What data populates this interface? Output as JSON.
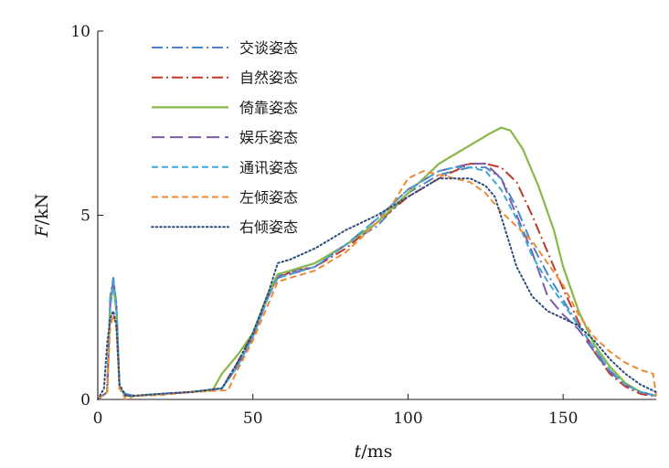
{
  "chart_data": {
    "type": "line",
    "xlabel": "t/ms",
    "ylabel": "F/kN",
    "xlim": [
      0,
      180
    ],
    "ylim": [
      0,
      10
    ],
    "xticks": [
      0,
      50,
      100,
      150
    ],
    "yticks": [
      0,
      5,
      10
    ],
    "grid": false,
    "legend": "top-left",
    "series": [
      {
        "name": "交谈姿态",
        "color": "#4a86c8",
        "dash": "dashdot",
        "points": [
          [
            0,
            0
          ],
          [
            3,
            0.2
          ],
          [
            4,
            2.8
          ],
          [
            5,
            3.3
          ],
          [
            6,
            2.6
          ],
          [
            7,
            0.3
          ],
          [
            9,
            0.15
          ],
          [
            12,
            0.1
          ],
          [
            20,
            0.15
          ],
          [
            30,
            0.2
          ],
          [
            40,
            0.3
          ],
          [
            45,
            0.9
          ],
          [
            50,
            1.7
          ],
          [
            55,
            2.8
          ],
          [
            58,
            3.35
          ],
          [
            62,
            3.45
          ],
          [
            70,
            3.7
          ],
          [
            80,
            4.2
          ],
          [
            90,
            4.7
          ],
          [
            100,
            5.6
          ],
          [
            110,
            6.1
          ],
          [
            120,
            6.3
          ],
          [
            125,
            6.3
          ],
          [
            130,
            6.0
          ],
          [
            135,
            5.2
          ],
          [
            140,
            4.2
          ],
          [
            145,
            3.4
          ],
          [
            150,
            2.7
          ],
          [
            155,
            2.0
          ],
          [
            160,
            1.4
          ],
          [
            165,
            0.8
          ],
          [
            170,
            0.4
          ],
          [
            175,
            0.2
          ],
          [
            180,
            0.1
          ]
        ]
      },
      {
        "name": "自然姿态",
        "color": "#c0392b",
        "dash": "dashdot",
        "points": [
          [
            0,
            0
          ],
          [
            3,
            0.2
          ],
          [
            4,
            2.5
          ],
          [
            5,
            3.2
          ],
          [
            6,
            2.5
          ],
          [
            7,
            0.3
          ],
          [
            9,
            0.12
          ],
          [
            12,
            0.1
          ],
          [
            20,
            0.15
          ],
          [
            30,
            0.2
          ],
          [
            40,
            0.3
          ],
          [
            45,
            1.0
          ],
          [
            50,
            1.8
          ],
          [
            55,
            2.9
          ],
          [
            58,
            3.3
          ],
          [
            62,
            3.45
          ],
          [
            70,
            3.6
          ],
          [
            80,
            4.1
          ],
          [
            90,
            4.8
          ],
          [
            100,
            5.5
          ],
          [
            110,
            6.0
          ],
          [
            120,
            6.4
          ],
          [
            125,
            6.4
          ],
          [
            130,
            6.3
          ],
          [
            135,
            5.9
          ],
          [
            140,
            5.0
          ],
          [
            145,
            4.0
          ],
          [
            150,
            3.0
          ],
          [
            155,
            2.1
          ],
          [
            160,
            1.3
          ],
          [
            165,
            0.7
          ],
          [
            170,
            0.35
          ],
          [
            175,
            0.15
          ],
          [
            180,
            0.08
          ]
        ]
      },
      {
        "name": "倚靠姿态",
        "color": "#8ab848",
        "dash": "solid",
        "points": [
          [
            0,
            0
          ],
          [
            3,
            0.2
          ],
          [
            4,
            2.6
          ],
          [
            5,
            3.1
          ],
          [
            6,
            2.4
          ],
          [
            7,
            0.3
          ],
          [
            9,
            0.1
          ],
          [
            12,
            0.1
          ],
          [
            20,
            0.15
          ],
          [
            30,
            0.2
          ],
          [
            37,
            0.25
          ],
          [
            40,
            0.7
          ],
          [
            45,
            1.2
          ],
          [
            50,
            1.8
          ],
          [
            55,
            2.9
          ],
          [
            58,
            3.4
          ],
          [
            62,
            3.5
          ],
          [
            70,
            3.7
          ],
          [
            80,
            4.2
          ],
          [
            90,
            4.8
          ],
          [
            100,
            5.6
          ],
          [
            110,
            6.4
          ],
          [
            120,
            6.9
          ],
          [
            126,
            7.2
          ],
          [
            130,
            7.38
          ],
          [
            133,
            7.3
          ],
          [
            137,
            6.8
          ],
          [
            142,
            5.8
          ],
          [
            147,
            4.6
          ],
          [
            150,
            3.6
          ],
          [
            155,
            2.4
          ],
          [
            160,
            1.5
          ],
          [
            165,
            0.9
          ],
          [
            170,
            0.45
          ],
          [
            175,
            0.2
          ],
          [
            180,
            0.1
          ]
        ]
      },
      {
        "name": "娱乐姿态",
        "color": "#7b5ca8",
        "dash": "longdash",
        "points": [
          [
            0,
            0
          ],
          [
            3,
            0.2
          ],
          [
            4,
            2.6
          ],
          [
            5,
            3.25
          ],
          [
            6,
            2.5
          ],
          [
            7,
            0.3
          ],
          [
            9,
            0.12
          ],
          [
            12,
            0.1
          ],
          [
            20,
            0.15
          ],
          [
            30,
            0.2
          ],
          [
            40,
            0.3
          ],
          [
            45,
            0.9
          ],
          [
            50,
            1.7
          ],
          [
            55,
            2.8
          ],
          [
            58,
            3.3
          ],
          [
            62,
            3.4
          ],
          [
            70,
            3.6
          ],
          [
            80,
            4.2
          ],
          [
            90,
            4.9
          ],
          [
            100,
            5.7
          ],
          [
            110,
            6.2
          ],
          [
            120,
            6.4
          ],
          [
            125,
            6.4
          ],
          [
            130,
            6.0
          ],
          [
            135,
            5.0
          ],
          [
            140,
            4.0
          ],
          [
            145,
            2.8
          ],
          [
            150,
            2.3
          ],
          [
            155,
            1.9
          ],
          [
            160,
            1.3
          ],
          [
            165,
            0.75
          ],
          [
            170,
            0.4
          ],
          [
            175,
            0.2
          ],
          [
            180,
            0.1
          ]
        ]
      },
      {
        "name": "通讯姿态",
        "color": "#3ea9d8",
        "dash": "dashed",
        "points": [
          [
            0,
            0
          ],
          [
            3,
            0.2
          ],
          [
            4,
            2.5
          ],
          [
            5,
            3.2
          ],
          [
            6,
            2.5
          ],
          [
            7,
            0.3
          ],
          [
            9,
            0.12
          ],
          [
            12,
            0.1
          ],
          [
            20,
            0.15
          ],
          [
            30,
            0.2
          ],
          [
            40,
            0.3
          ],
          [
            45,
            0.9
          ],
          [
            50,
            1.7
          ],
          [
            55,
            2.8
          ],
          [
            58,
            3.3
          ],
          [
            62,
            3.4
          ],
          [
            70,
            3.6
          ],
          [
            80,
            4.2
          ],
          [
            90,
            4.9
          ],
          [
            100,
            5.7
          ],
          [
            110,
            6.2
          ],
          [
            115,
            6.3
          ],
          [
            120,
            6.3
          ],
          [
            125,
            6.2
          ],
          [
            130,
            5.7
          ],
          [
            135,
            4.9
          ],
          [
            140,
            3.9
          ],
          [
            145,
            3.2
          ],
          [
            150,
            2.6
          ],
          [
            155,
            2.0
          ],
          [
            160,
            1.4
          ],
          [
            165,
            0.8
          ],
          [
            170,
            0.4
          ],
          [
            175,
            0.2
          ],
          [
            180,
            0.1
          ]
        ]
      },
      {
        "name": "左倾姿态",
        "color": "#ee8a33",
        "dash": "dashed",
        "points": [
          [
            0,
            0
          ],
          [
            3,
            0.2
          ],
          [
            4,
            2.0
          ],
          [
            5,
            2.3
          ],
          [
            6,
            1.9
          ],
          [
            7,
            0.3
          ],
          [
            9,
            0.0
          ],
          [
            12,
            0.1
          ],
          [
            20,
            0.12
          ],
          [
            30,
            0.2
          ],
          [
            42,
            0.25
          ],
          [
            45,
            0.8
          ],
          [
            50,
            1.6
          ],
          [
            55,
            2.6
          ],
          [
            58,
            3.2
          ],
          [
            62,
            3.3
          ],
          [
            70,
            3.5
          ],
          [
            80,
            4.0
          ],
          [
            90,
            4.8
          ],
          [
            95,
            5.3
          ],
          [
            100,
            6.0
          ],
          [
            105,
            6.2
          ],
          [
            110,
            6.1
          ],
          [
            115,
            6.0
          ],
          [
            120,
            5.9
          ],
          [
            125,
            5.6
          ],
          [
            130,
            5.1
          ],
          [
            135,
            4.7
          ],
          [
            140,
            4.3
          ],
          [
            145,
            3.7
          ],
          [
            150,
            3.1
          ],
          [
            155,
            2.3
          ],
          [
            160,
            1.7
          ],
          [
            165,
            1.3
          ],
          [
            170,
            1.0
          ],
          [
            175,
            0.8
          ],
          [
            179,
            0.7
          ],
          [
            180,
            0.1
          ]
        ]
      },
      {
        "name": "右倾姿态",
        "color": "#2c4a7c",
        "dash": "dotted",
        "points": [
          [
            0,
            0
          ],
          [
            2,
            0.3
          ],
          [
            3,
            1.5
          ],
          [
            4,
            2.2
          ],
          [
            5,
            2.4
          ],
          [
            6,
            2.0
          ],
          [
            7,
            0.4
          ],
          [
            9,
            0.1
          ],
          [
            12,
            0.1
          ],
          [
            20,
            0.15
          ],
          [
            30,
            0.2
          ],
          [
            40,
            0.3
          ],
          [
            45,
            1.0
          ],
          [
            50,
            1.8
          ],
          [
            55,
            2.9
          ],
          [
            58,
            3.7
          ],
          [
            62,
            3.8
          ],
          [
            70,
            4.1
          ],
          [
            80,
            4.6
          ],
          [
            90,
            5.0
          ],
          [
            100,
            5.5
          ],
          [
            110,
            6.0
          ],
          [
            115,
            6.0
          ],
          [
            120,
            6.0
          ],
          [
            125,
            5.8
          ],
          [
            128,
            5.5
          ],
          [
            131,
            4.7
          ],
          [
            135,
            3.6
          ],
          [
            140,
            2.8
          ],
          [
            145,
            2.4
          ],
          [
            150,
            2.2
          ],
          [
            155,
            2.0
          ],
          [
            160,
            1.6
          ],
          [
            165,
            1.1
          ],
          [
            170,
            0.7
          ],
          [
            175,
            0.4
          ],
          [
            180,
            0.2
          ]
        ]
      }
    ]
  }
}
